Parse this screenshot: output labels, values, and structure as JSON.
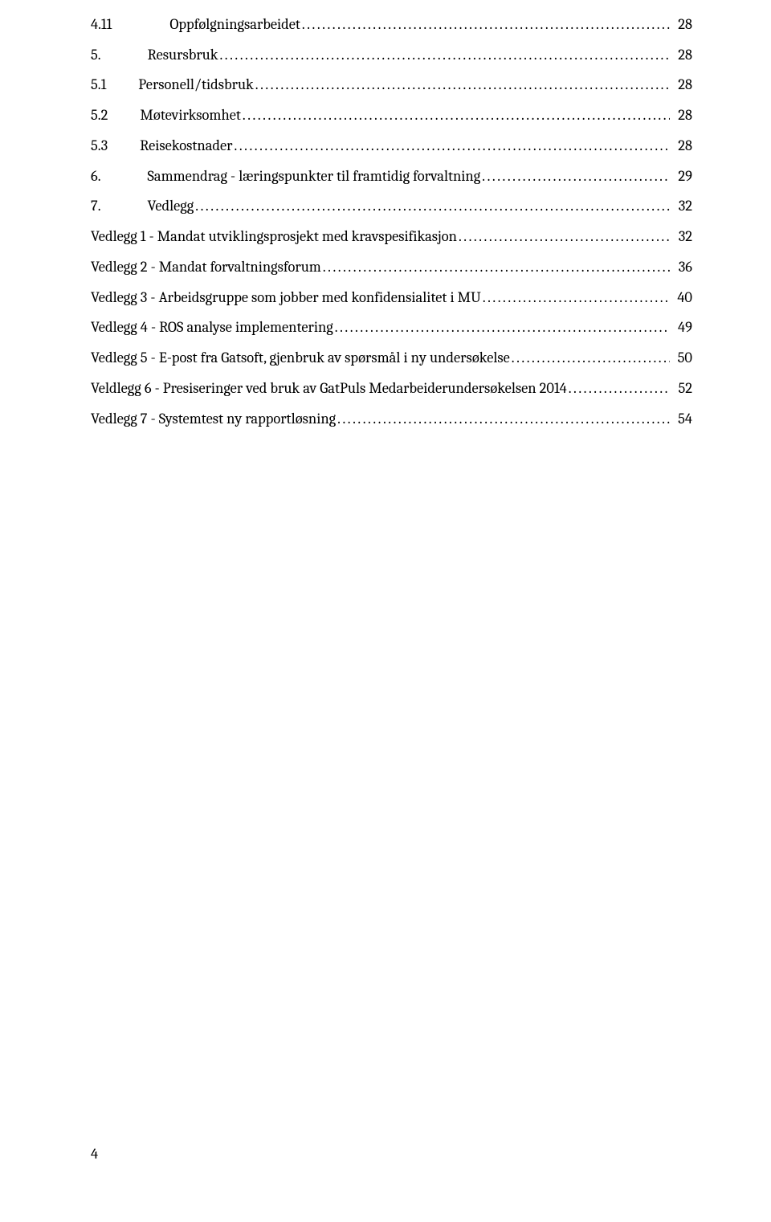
{
  "toc": [
    {
      "type": "sub",
      "num": "4.11",
      "gap": "gap-sub-wide",
      "title": "Oppfølgningsarbeidet",
      "page": "28"
    },
    {
      "type": "section",
      "num": "5.",
      "gap": "gap-sec-wide",
      "title": "Resursbruk",
      "page": "28"
    },
    {
      "type": "sub",
      "num": "5.1",
      "gap": "gap-sub",
      "title": "Personell/tidsbruk",
      "page": "28"
    },
    {
      "type": "sub",
      "num": "5.2",
      "gap": "gap-sub",
      "title": "Møtevirksomhet",
      "page": "28"
    },
    {
      "type": "sub",
      "num": "5.3",
      "gap": "gap-sub",
      "title": "Reisekostnader",
      "page": "28"
    },
    {
      "type": "section",
      "num": "6.",
      "gap": "gap-sec-wide",
      "title": "Sammendrag - læringspunkter til framtidig forvaltning",
      "page": "29"
    },
    {
      "type": "section",
      "num": "7.",
      "gap": "gap-sec-wide",
      "title": "Vedlegg",
      "page": "32"
    },
    {
      "type": "plain",
      "title": "Vedlegg 1 - Mandat utviklingsprosjekt med kravspesifikasjon",
      "page": "32"
    },
    {
      "type": "plain",
      "title": "Vedlegg 2 - Mandat forvaltningsforum",
      "page": "36"
    },
    {
      "type": "plain",
      "title": "Vedlegg 3 - Arbeidsgruppe som jobber med konfidensialitet i MU",
      "page": "40"
    },
    {
      "type": "plain",
      "title": "Vedlegg 4 - ROS analyse implementering",
      "page": "49"
    },
    {
      "type": "plain",
      "title": "Vedlegg 5 - E-post fra Gatsoft, gjenbruk av spørsmål i ny undersøkelse",
      "page": "50"
    },
    {
      "type": "plain",
      "title": "Veldlegg 6 - Presiseringer ved bruk av GatPuls Medarbeiderundersøkelsen 2014",
      "page": "52"
    },
    {
      "type": "plain",
      "title": "Vedlegg 7 - Systemtest ny rapportløsning",
      "page": "54"
    }
  ],
  "pageNumber": "4",
  "colors": {
    "text": "#000000",
    "background": "#ffffff"
  },
  "typography": {
    "family": "Cambria/serif",
    "size_pt_est": 12,
    "line_height_mult": 2.04
  }
}
